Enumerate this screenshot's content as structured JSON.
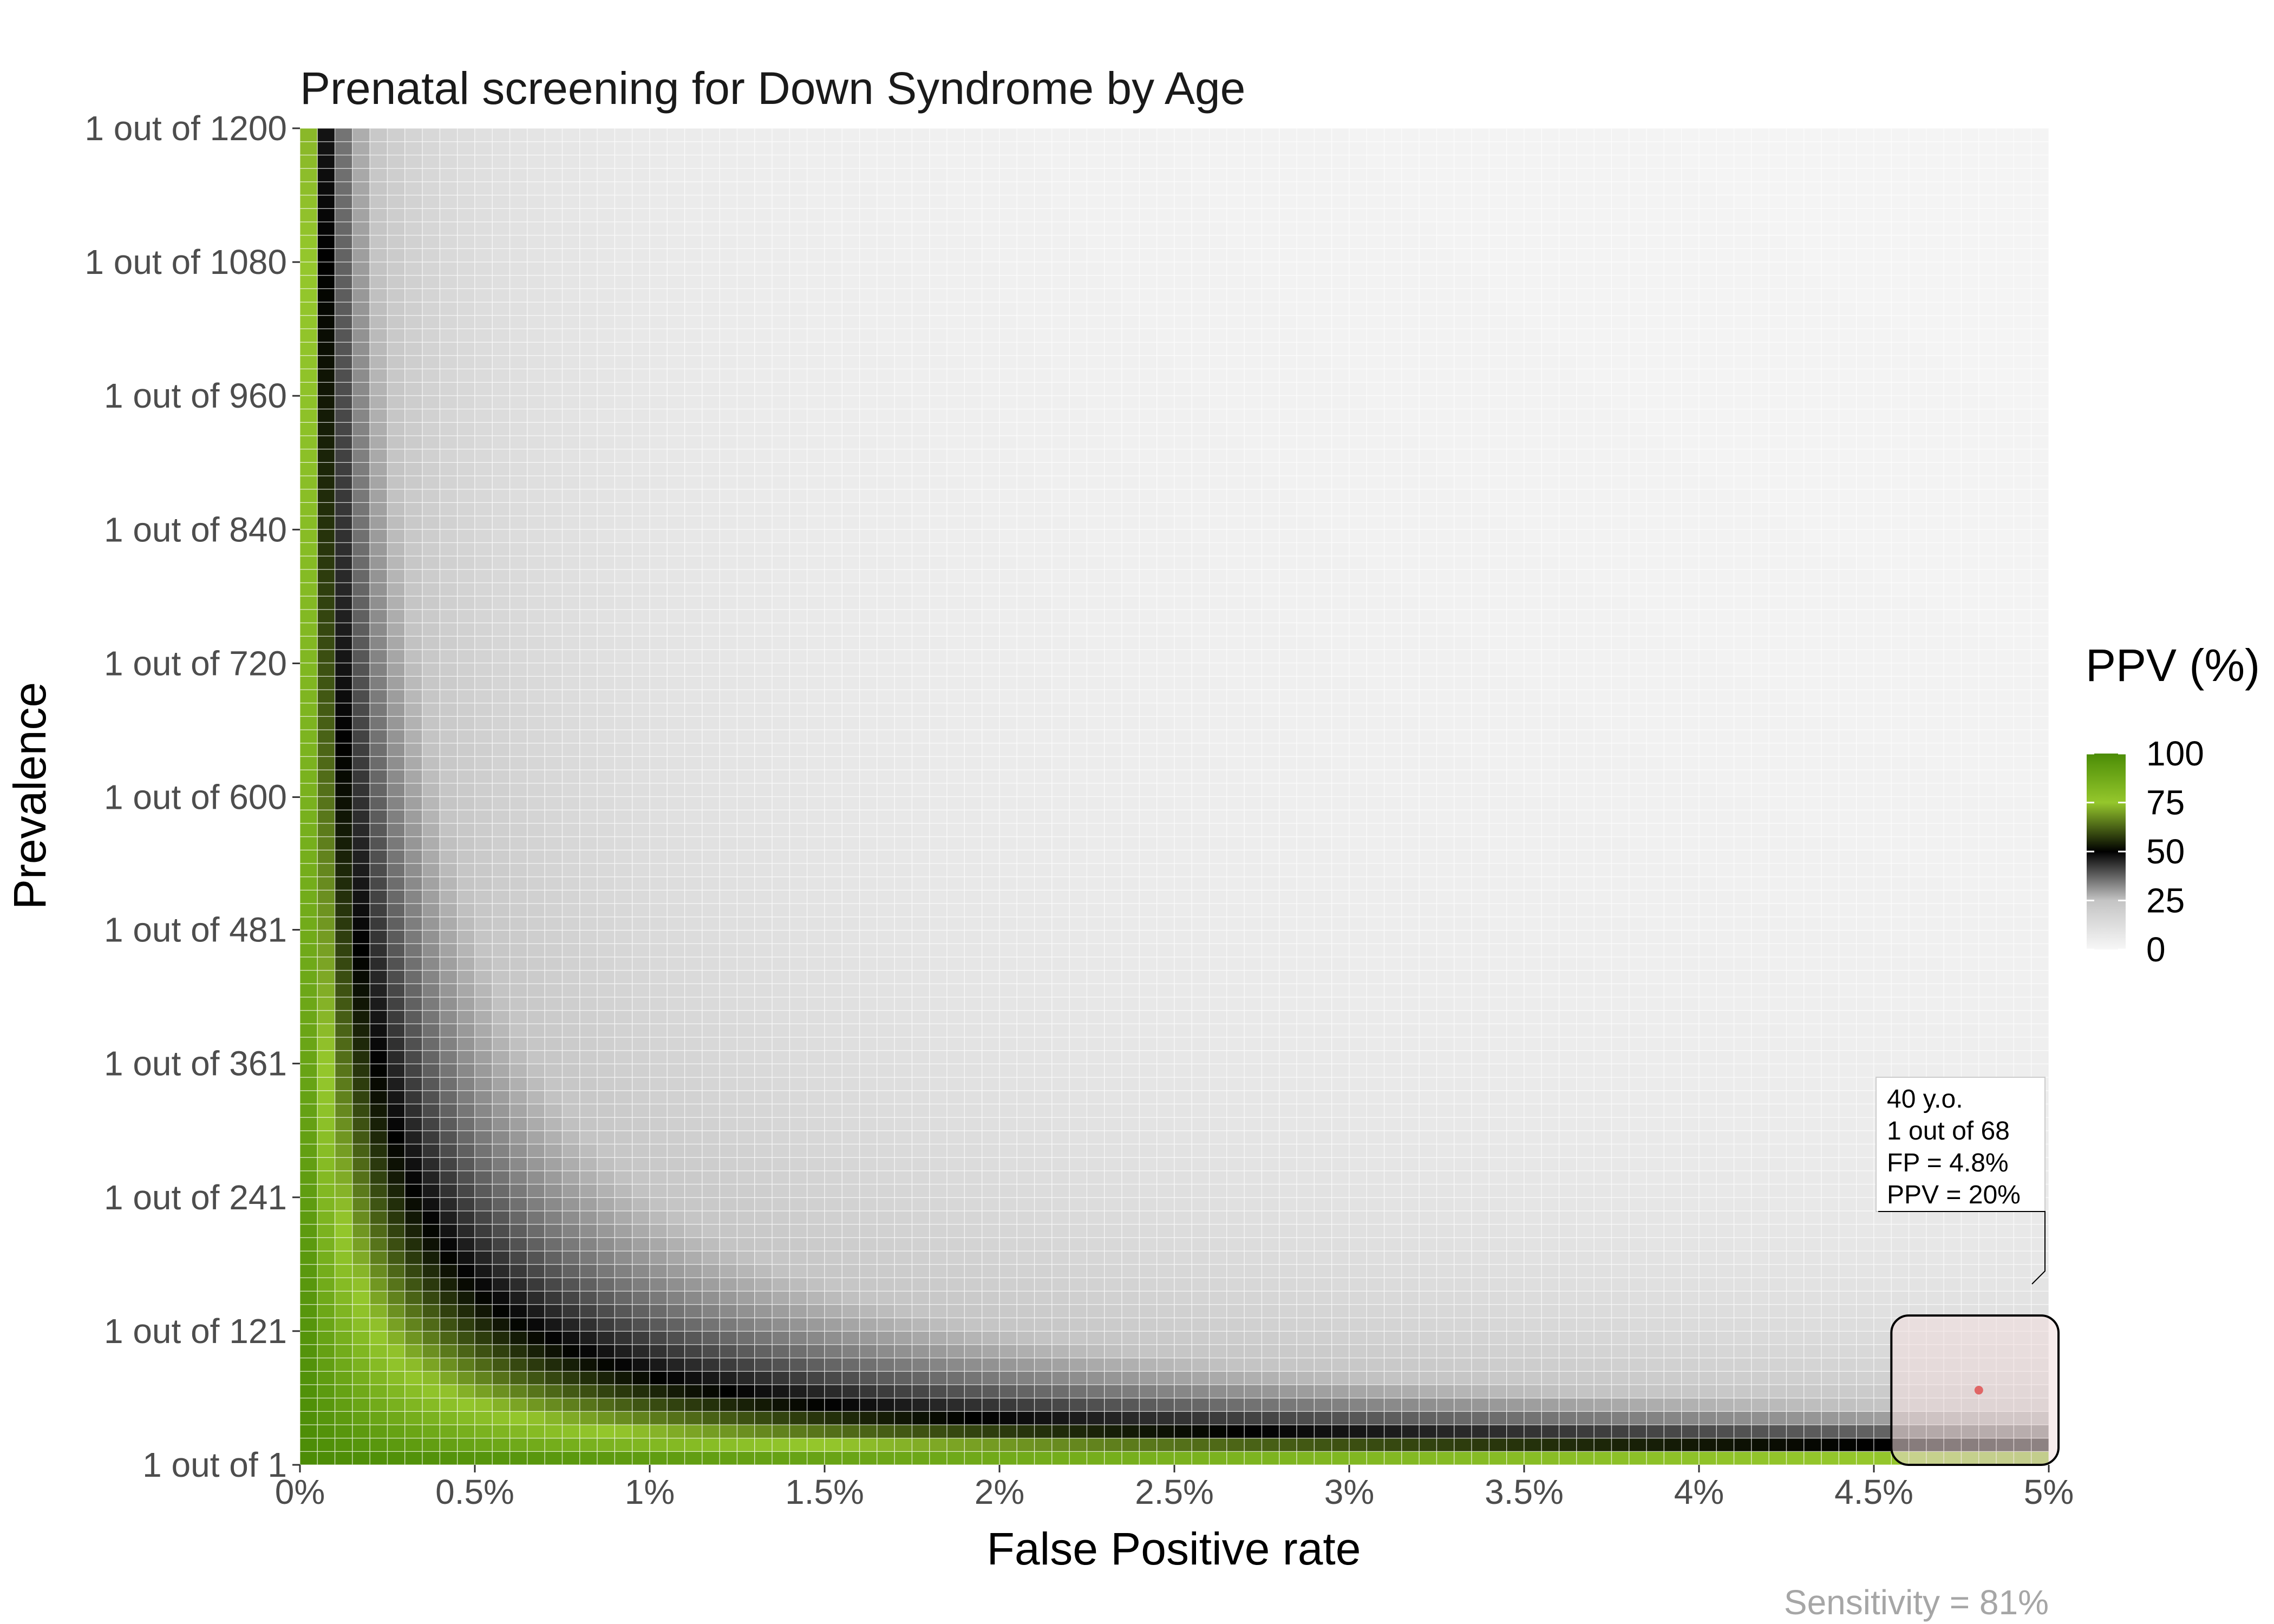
{
  "chart_data": {
    "type": "heatmap",
    "title": "Prenatal screening for Down Syndrome by Age",
    "xlabel": "False Positive rate",
    "ylabel": "Prevalence",
    "x_range": [
      0,
      5
    ],
    "x_unit": "%",
    "x_ticks": [
      "0%",
      "0.5%",
      "1%",
      "1.5%",
      "2%",
      "2.5%",
      "3%",
      "3.5%",
      "4%",
      "4.5%",
      "5%"
    ],
    "x_tick_values": [
      0,
      0.5,
      1,
      1.5,
      2,
      2.5,
      3,
      3.5,
      4,
      4.5,
      5
    ],
    "y_range": [
      1,
      1200
    ],
    "y_ticks": [
      "1 out of 1",
      "1 out of 121",
      "1 out of 241",
      "1 out of 361",
      "1 out of 481",
      "1 out of 600",
      "1 out of 720",
      "1 out of 840",
      "1 out of 960",
      "1 out of 1080",
      "1 out of 1200"
    ],
    "y_tick_values": [
      1,
      121,
      241,
      361,
      481,
      600,
      720,
      840,
      960,
      1080,
      1200
    ],
    "grid_size": 100,
    "sensitivity": 81,
    "fill": {
      "name": "PPV (%)",
      "range": [
        0,
        100
      ],
      "legend_ticks": [
        "0",
        "25",
        "50",
        "75",
        "100"
      ],
      "legend_tick_values": [
        0,
        25,
        50,
        75,
        100
      ],
      "colors": [
        {
          "value": 0,
          "color": "#f7f7f7"
        },
        {
          "value": 25,
          "color": "#c4c4c4"
        },
        {
          "value": 50,
          "color": "#000000"
        },
        {
          "value": 75,
          "color": "#95c72c"
        },
        {
          "value": 100,
          "color": "#4b8c06"
        }
      ],
      "legend_position": "right"
    },
    "highlight": {
      "x": 4.8,
      "y": 68,
      "marker_color": "#e06666",
      "region_fill": "#f2dede",
      "region_x_range": [
        4.55,
        5
      ],
      "region_y_range": [
        1,
        135
      ],
      "label_lines": [
        "40 y.o.",
        "1 out of 68",
        "FP = 4.8%",
        "PPV = 20%"
      ]
    },
    "caption": "Sensitivity = 81%"
  }
}
